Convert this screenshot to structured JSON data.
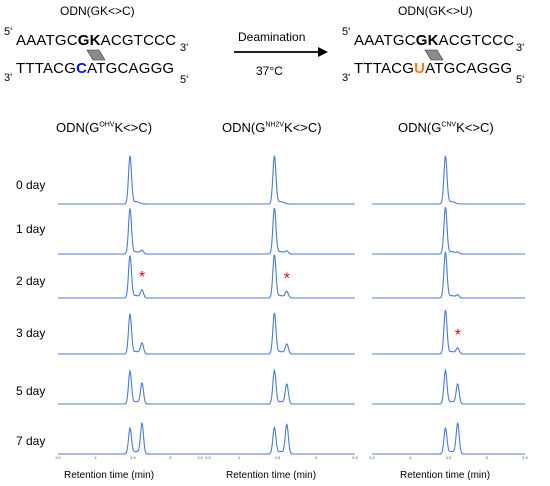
{
  "scheme": {
    "left": {
      "title": "ODN(GK<>C)",
      "top_strand": {
        "pre": "AAATGC",
        "bold": "GK",
        "post": "ACGTCCC"
      },
      "bottom_strand": {
        "pre": "TTTACG",
        "base": "C",
        "post": "ATGCAGGG"
      },
      "base_color": "#1010e0"
    },
    "arrow": {
      "label_top": "Deamination",
      "label_bottom": "37°C"
    },
    "right": {
      "title": "ODN(GK<>U)",
      "top_strand": {
        "pre": "AAATGC",
        "bold": "GK",
        "post": "ACGTCCC"
      },
      "bottom_strand": {
        "pre": "TTTACG",
        "base": "U",
        "post": "ATGCAGGG"
      },
      "base_color": "#f07f10"
    },
    "ends": {
      "five": "5'",
      "three": "3'"
    }
  },
  "chart_data": {
    "type": "line",
    "line_color": "#4a7cd0",
    "marker_color": "#e00000",
    "marker": "*",
    "xlabel": "Retention time (min)",
    "days": [
      "0 day",
      "1 day",
      "2 day",
      "3 day",
      "5 day",
      "7 day"
    ],
    "x_ticks": [
      "3.5",
      "4",
      "4.5",
      "5",
      "5.5"
    ],
    "xlim": [
      3.5,
      5.5
    ],
    "panels": [
      {
        "title_pre": "ODN(G",
        "title_sup": "OHV",
        "title_post": "K<>C)",
        "main_peak_x": 4.46,
        "product_peak_x": 4.62,
        "product_fraction": [
          0,
          0.1,
          0.22,
          0.3,
          0.58,
          0.85
        ],
        "star_day_index": 2
      },
      {
        "title_pre": "ODN(G",
        "title_sup": "NH2V",
        "title_post": "K<>C)",
        "main_peak_x": 4.46,
        "product_peak_x": 4.62,
        "product_fraction": [
          0,
          0.08,
          0.18,
          0.27,
          0.55,
          0.82
        ],
        "star_day_index": 2
      },
      {
        "title_pre": "ODN(G",
        "title_sup": "CNV",
        "title_post": "K<>C)",
        "main_peak_x": 4.46,
        "product_peak_x": 4.62,
        "product_fraction": [
          0,
          0.05,
          0.08,
          0.16,
          0.55,
          0.85
        ],
        "star_day_index": 3
      }
    ]
  }
}
